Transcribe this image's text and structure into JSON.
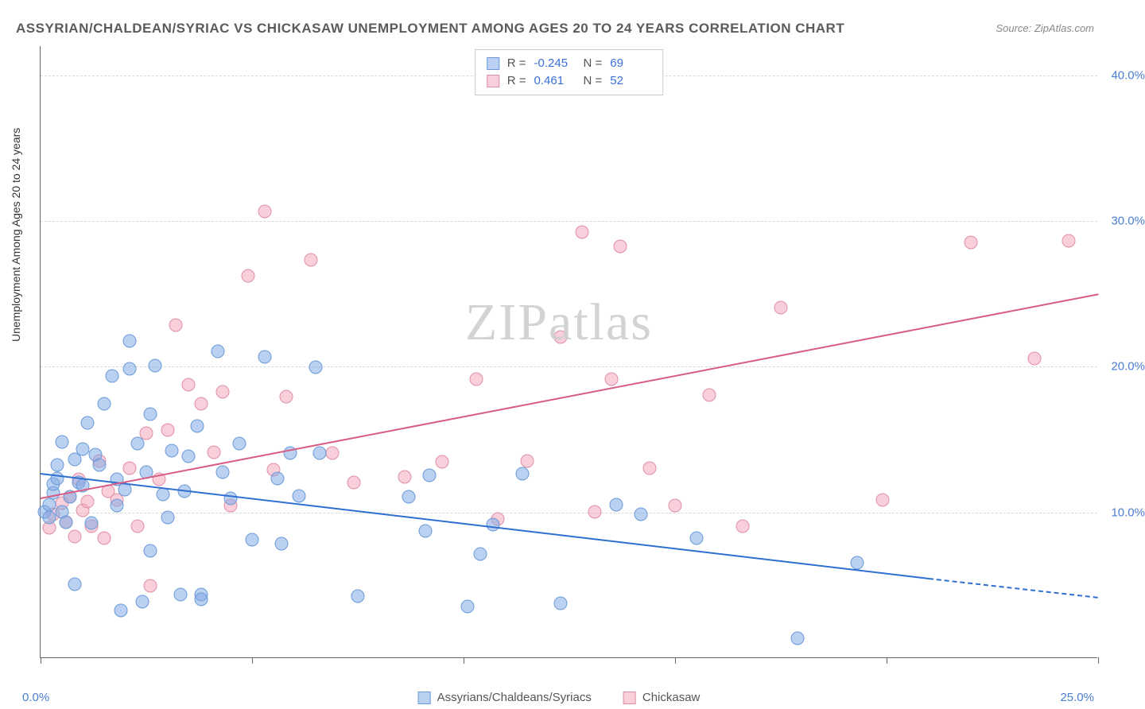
{
  "title": "ASSYRIAN/CHALDEAN/SYRIAC VS CHICKASAW UNEMPLOYMENT AMONG AGES 20 TO 24 YEARS CORRELATION CHART",
  "source": "Source: ZipAtlas.com",
  "watermark": "ZIPatlas",
  "y_axis_label": "Unemployment Among Ages 20 to 24 years",
  "x_min_label": "0.0%",
  "x_max_label": "25.0%",
  "chart": {
    "type": "scatter",
    "xlim": [
      0,
      25
    ],
    "ylim": [
      0,
      42
    ],
    "y_ticks": [
      10,
      20,
      30,
      40
    ],
    "y_tick_labels": [
      "10.0%",
      "20.0%",
      "30.0%",
      "40.0%"
    ],
    "x_ticks": [
      0,
      5,
      10,
      15,
      20,
      25
    ],
    "grid_color": "#d8d8d8",
    "background": "#ffffff",
    "axis_color": "#666666"
  },
  "series": {
    "blue": {
      "label": "Assyrians/Chaldeans/Syriacs",
      "fill": "rgba(131,172,229,0.55)",
      "stroke": "#6a9ad8",
      "trend_color": "#2f6fd0",
      "R": "-0.245",
      "N": "69",
      "trend": {
        "x1": 0,
        "y1": 12.7,
        "x2": 21,
        "y2": 5.5,
        "dash_extend_to": 25,
        "dash_y": 4.2
      },
      "points": [
        [
          0.1,
          10.0
        ],
        [
          0.2,
          10.5
        ],
        [
          0.2,
          9.6
        ],
        [
          0.3,
          11.3
        ],
        [
          0.3,
          11.9
        ],
        [
          0.4,
          13.2
        ],
        [
          0.4,
          12.3
        ],
        [
          0.5,
          10.0
        ],
        [
          0.5,
          14.8
        ],
        [
          0.6,
          9.3
        ],
        [
          0.7,
          11.0
        ],
        [
          0.8,
          13.6
        ],
        [
          0.8,
          5.0
        ],
        [
          0.9,
          12.0
        ],
        [
          1.0,
          11.8
        ],
        [
          1.0,
          14.3
        ],
        [
          1.1,
          16.1
        ],
        [
          1.2,
          9.2
        ],
        [
          1.3,
          13.9
        ],
        [
          1.4,
          13.2
        ],
        [
          1.5,
          17.4
        ],
        [
          1.7,
          19.3
        ],
        [
          1.8,
          12.2
        ],
        [
          1.8,
          10.4
        ],
        [
          1.9,
          3.2
        ],
        [
          2.0,
          11.5
        ],
        [
          2.1,
          21.7
        ],
        [
          2.1,
          19.8
        ],
        [
          2.3,
          14.7
        ],
        [
          2.4,
          3.8
        ],
        [
          2.5,
          12.7
        ],
        [
          2.6,
          7.3
        ],
        [
          2.6,
          16.7
        ],
        [
          2.7,
          20.0
        ],
        [
          2.9,
          11.2
        ],
        [
          3.0,
          9.6
        ],
        [
          3.1,
          14.2
        ],
        [
          3.3,
          4.3
        ],
        [
          3.4,
          11.4
        ],
        [
          3.5,
          13.8
        ],
        [
          3.7,
          15.9
        ],
        [
          3.8,
          4.3
        ],
        [
          3.8,
          4.0
        ],
        [
          4.2,
          21.0
        ],
        [
          4.3,
          12.7
        ],
        [
          4.5,
          10.9
        ],
        [
          4.7,
          14.7
        ],
        [
          5.0,
          8.1
        ],
        [
          5.3,
          20.6
        ],
        [
          5.6,
          12.3
        ],
        [
          5.7,
          7.8
        ],
        [
          5.9,
          14.0
        ],
        [
          6.1,
          11.1
        ],
        [
          6.5,
          19.9
        ],
        [
          6.6,
          14.0
        ],
        [
          7.5,
          4.2
        ],
        [
          8.7,
          11.0
        ],
        [
          9.1,
          8.7
        ],
        [
          9.2,
          12.5
        ],
        [
          10.1,
          3.5
        ],
        [
          10.4,
          7.1
        ],
        [
          10.7,
          9.1
        ],
        [
          11.4,
          12.6
        ],
        [
          12.3,
          3.7
        ],
        [
          13.6,
          10.5
        ],
        [
          14.2,
          9.8
        ],
        [
          15.5,
          8.2
        ],
        [
          17.9,
          1.3
        ],
        [
          19.3,
          6.5
        ]
      ]
    },
    "pink": {
      "label": "Chickasaw",
      "fill": "rgba(242,168,188,0.55)",
      "stroke": "#e08fa5",
      "trend_color": "#d85d84",
      "R": "0.461",
      "N": "52",
      "trend": {
        "x1": 0,
        "y1": 11.0,
        "x2": 25,
        "y2": 25.0
      },
      "points": [
        [
          0.2,
          8.9
        ],
        [
          0.3,
          9.8
        ],
        [
          0.5,
          10.6
        ],
        [
          0.6,
          9.3
        ],
        [
          0.7,
          11.0
        ],
        [
          0.8,
          8.3
        ],
        [
          0.9,
          12.2
        ],
        [
          1.0,
          10.1
        ],
        [
          1.1,
          10.7
        ],
        [
          1.2,
          9.0
        ],
        [
          1.4,
          13.5
        ],
        [
          1.5,
          8.2
        ],
        [
          1.6,
          11.4
        ],
        [
          1.8,
          10.8
        ],
        [
          2.1,
          13.0
        ],
        [
          2.3,
          9.0
        ],
        [
          2.5,
          15.4
        ],
        [
          2.6,
          4.9
        ],
        [
          2.8,
          12.2
        ],
        [
          3.0,
          15.6
        ],
        [
          3.2,
          22.8
        ],
        [
          3.5,
          18.7
        ],
        [
          3.8,
          17.4
        ],
        [
          4.1,
          14.1
        ],
        [
          4.3,
          18.2
        ],
        [
          4.5,
          10.4
        ],
        [
          4.9,
          26.2
        ],
        [
          5.3,
          30.6
        ],
        [
          5.5,
          12.9
        ],
        [
          5.8,
          17.9
        ],
        [
          6.4,
          27.3
        ],
        [
          6.9,
          14.0
        ],
        [
          7.4,
          12.0
        ],
        [
          8.6,
          12.4
        ],
        [
          9.5,
          13.4
        ],
        [
          10.3,
          19.1
        ],
        [
          10.8,
          9.5
        ],
        [
          11.5,
          13.5
        ],
        [
          12.3,
          22.0
        ],
        [
          12.8,
          29.2
        ],
        [
          13.1,
          10.0
        ],
        [
          13.5,
          19.1
        ],
        [
          13.7,
          28.2
        ],
        [
          14.4,
          13.0
        ],
        [
          15.0,
          10.4
        ],
        [
          15.8,
          18.0
        ],
        [
          16.6,
          9.0
        ],
        [
          17.5,
          24.0
        ],
        [
          19.9,
          10.8
        ],
        [
          22.0,
          28.5
        ],
        [
          24.3,
          28.6
        ],
        [
          23.5,
          20.5
        ]
      ]
    }
  }
}
